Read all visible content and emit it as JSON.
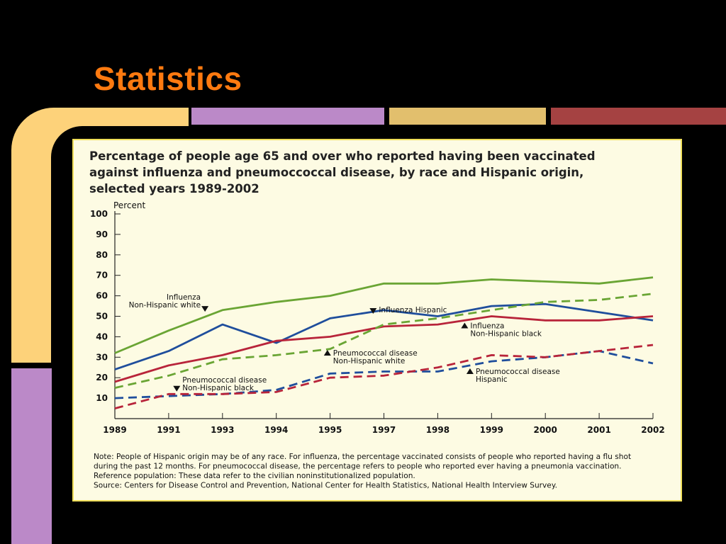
{
  "slide": {
    "title": "Statistics",
    "colors": {
      "title": "#ff7a10",
      "background": "#000000",
      "accent_yellow": "#fdd27a",
      "accent_purple": "#bb89c8",
      "accent_tan": "#e2bf6d",
      "accent_red": "#a54242",
      "panel": "#fdfbe3",
      "panel_border": "#f0df5a"
    }
  },
  "chart_data": {
    "type": "line",
    "title_lines": [
      "Percentage of people age 65 and over who reported having been vaccinated",
      "against influenza and pneumoccoccal disease, by race and Hispanic origin,",
      "selected years 1989-2002"
    ],
    "ylabel": "Percent",
    "ylim": [
      0,
      100
    ],
    "yticks": [
      0,
      10,
      20,
      30,
      40,
      50,
      60,
      70,
      80,
      90,
      100
    ],
    "ytick_labels": [
      "",
      "10",
      "20",
      "30",
      "40",
      "50",
      "60",
      "70",
      "80",
      "90",
      "100"
    ],
    "xticks": [
      1989,
      1991,
      1993,
      1994,
      1995,
      1997,
      1998,
      1999,
      2000,
      2001,
      2002
    ],
    "xtick_labels": [
      "1989",
      "1991",
      "1993",
      "1994",
      "1995",
      "1997",
      "1998",
      "1999",
      "2000",
      "2001",
      "2002"
    ],
    "grid": false,
    "series": [
      {
        "id": "flu-white",
        "color": "#6aa534",
        "dash": false,
        "points": [
          [
            1989,
            32
          ],
          [
            1991,
            43
          ],
          [
            1993,
            53
          ],
          [
            1994,
            57
          ],
          [
            1995,
            60
          ],
          [
            1997,
            66
          ],
          [
            1998,
            66
          ],
          [
            1999,
            68
          ],
          [
            2000,
            67
          ],
          [
            2001,
            66
          ],
          [
            2002,
            69
          ]
        ]
      },
      {
        "id": "flu-hispanic",
        "color": "#1f4e9c",
        "dash": false,
        "points": [
          [
            1989,
            24
          ],
          [
            1991,
            33
          ],
          [
            1993,
            46
          ],
          [
            1994,
            37
          ],
          [
            1995,
            49
          ],
          [
            1997,
            53
          ],
          [
            1998,
            50
          ],
          [
            1999,
            55
          ],
          [
            2000,
            56
          ],
          [
            2001,
            52
          ],
          [
            2002,
            48
          ]
        ]
      },
      {
        "id": "flu-black",
        "color": "#b8243a",
        "dash": false,
        "points": [
          [
            1989,
            18
          ],
          [
            1991,
            26
          ],
          [
            1993,
            31
          ],
          [
            1994,
            38
          ],
          [
            1995,
            40
          ],
          [
            1997,
            45
          ],
          [
            1998,
            46
          ],
          [
            1999,
            50
          ],
          [
            2000,
            48
          ],
          [
            2001,
            48
          ],
          [
            2002,
            50
          ]
        ]
      },
      {
        "id": "pneumo-white",
        "color": "#6aa534",
        "dash": true,
        "points": [
          [
            1989,
            15
          ],
          [
            1991,
            21
          ],
          [
            1993,
            29
          ],
          [
            1994,
            31
          ],
          [
            1995,
            34
          ],
          [
            1997,
            46
          ],
          [
            1998,
            49
          ],
          [
            1999,
            53
          ],
          [
            2000,
            57
          ],
          [
            2001,
            58
          ],
          [
            2002,
            61
          ]
        ]
      },
      {
        "id": "pneumo-hispanic",
        "color": "#1f4e9c",
        "dash": true,
        "points": [
          [
            1989,
            10
          ],
          [
            1991,
            11
          ],
          [
            1993,
            12
          ],
          [
            1994,
            14
          ],
          [
            1995,
            22
          ],
          [
            1997,
            23
          ],
          [
            1998,
            23
          ],
          [
            1999,
            28
          ],
          [
            2000,
            30
          ],
          [
            2001,
            33
          ],
          [
            2002,
            27
          ]
        ]
      },
      {
        "id": "pneumo-black",
        "color": "#b8243a",
        "dash": true,
        "points": [
          [
            1989,
            5
          ],
          [
            1991,
            12
          ],
          [
            1993,
            12
          ],
          [
            1994,
            13
          ],
          [
            1995,
            20
          ],
          [
            1997,
            21
          ],
          [
            1998,
            25
          ],
          [
            1999,
            31
          ],
          [
            2000,
            30
          ],
          [
            2001,
            33
          ],
          [
            2002,
            36
          ]
        ]
      }
    ],
    "annotations": [
      {
        "lines": [
          "Influenza",
          "Non-Hispanic white"
        ],
        "marker": "down",
        "x": 1992.35,
        "y": 53.6
      },
      {
        "lines": [
          "Influenza Hispanic"
        ],
        "marker": "down",
        "x": 1996.6,
        "y": 52.6
      },
      {
        "lines": [
          "Influenza",
          "Non-Hispanic black"
        ],
        "marker": "up",
        "x": 1998.5,
        "y": 45.5
      },
      {
        "lines": [
          "Pneumococcal disease",
          "Non-Hispanic white"
        ],
        "marker": "up",
        "x": 1994.95,
        "y": 32.2
      },
      {
        "lines": [
          "Pneumococcal disease",
          "Hispanic"
        ],
        "marker": "up",
        "x": 1998.6,
        "y": 23.2
      },
      {
        "lines": [
          "Pneumococcal disease",
          "Non-Hispanic black"
        ],
        "marker": "down",
        "x": 1991.3,
        "y": 14.6
      }
    ],
    "note_lines": [
      "Note: People of Hispanic origin may be of any race.  For influenza, the percentage vaccinated consists of people who reported having a flu shot",
      "during the past 12 months. For pneumococcal disease, the percentage refers to people who reported ever having a pneumonia vaccination.",
      "Reference population: These data refer to the civilian noninstitutionalized population.",
      "Source: Centers for Disease Control and Prevention, National Center for Health Statistics, National Health Interview Survey."
    ]
  }
}
